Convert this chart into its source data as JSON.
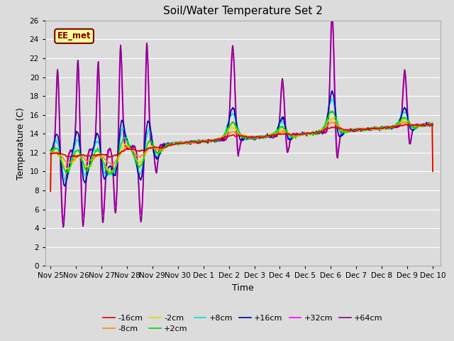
{
  "title": "Soil/Water Temperature Set 2",
  "xlabel": "Time",
  "ylabel": "Temperature (C)",
  "ylim": [
    0,
    26
  ],
  "yticks": [
    0,
    2,
    4,
    6,
    8,
    10,
    12,
    14,
    16,
    18,
    20,
    22,
    24,
    26
  ],
  "bg_color": "#dcdcdc",
  "annotation_text": "EE_met",
  "annotation_bg": "#ffff99",
  "annotation_border": "#800000",
  "xtick_labels": [
    "Nov 25",
    "Nov 26",
    "Nov 27",
    "Nov 28",
    "Nov 29",
    "Nov 30",
    "Dec 1",
    "Dec 2",
    "Dec 3",
    "Dec 4",
    "Dec 5",
    "Dec 6",
    "Dec 7",
    "Dec 8",
    "Dec 9",
    "Dec 10"
  ],
  "xtick_positions": [
    0,
    1,
    2,
    3,
    4,
    5,
    6,
    7,
    8,
    9,
    10,
    11,
    12,
    13,
    14,
    15
  ],
  "colors": {
    "m16": "#dd0000",
    "m8": "#ff8800",
    "m2": "#dddd00",
    "p2": "#00dd00",
    "p8": "#00dddd",
    "p16": "#0000aa",
    "p32": "#ff00ff",
    "p64": "#880088"
  },
  "legend_labels": [
    "-16cm",
    "-8cm",
    "-2cm",
    "+2cm",
    "+8cm",
    "+16cm",
    "+32cm",
    "+64cm"
  ]
}
